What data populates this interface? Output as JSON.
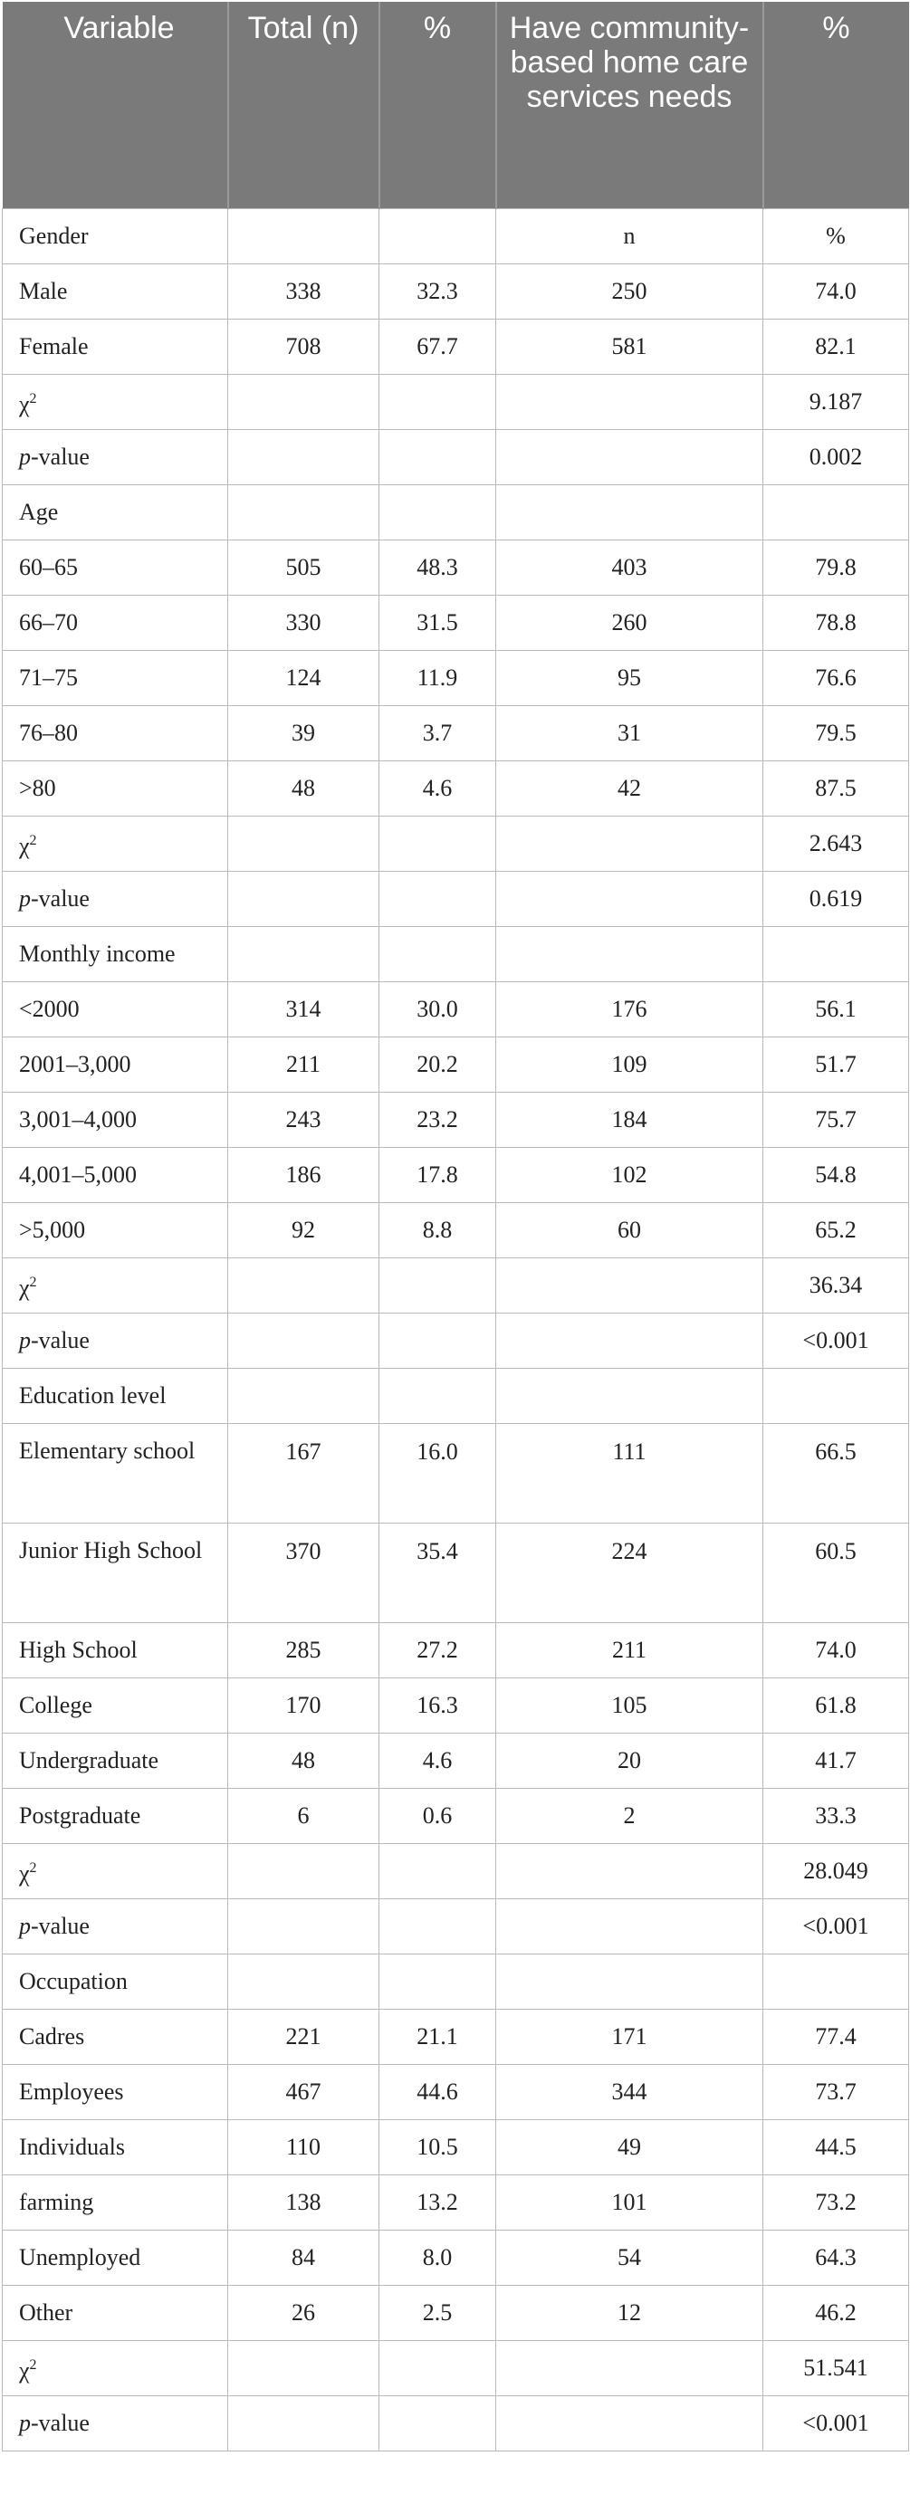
{
  "header": {
    "variable": "Variable",
    "total": "Total (n)",
    "pct": "%",
    "needs": "Have community-based home care services needs",
    "needs_pct": "%"
  },
  "rows": [
    {
      "type": "section",
      "label": "Gender",
      "c3": "n",
      "c4": "%"
    },
    {
      "type": "data",
      "label": "Male",
      "total": "338",
      "pct": "32.3",
      "n": "250",
      "npct": "74.0"
    },
    {
      "type": "data",
      "label": "Female",
      "total": "708",
      "pct": "67.7",
      "n": "581",
      "npct": "82.1"
    },
    {
      "type": "chi",
      "label": "χ",
      "sup": "2",
      "value": "9.187"
    },
    {
      "type": "p",
      "label_italic": "p",
      "label_rest": "-value",
      "value": "0.002"
    },
    {
      "type": "section",
      "label": "Age"
    },
    {
      "type": "data",
      "label": "60–65",
      "total": "505",
      "pct": "48.3",
      "n": "403",
      "npct": "79.8"
    },
    {
      "type": "data",
      "label": "66–70",
      "total": "330",
      "pct": "31.5",
      "n": "260",
      "npct": "78.8"
    },
    {
      "type": "data",
      "label": "71–75",
      "total": "124",
      "pct": "11.9",
      "n": "95",
      "npct": "76.6"
    },
    {
      "type": "data",
      "label": "76–80",
      "total": "39",
      "pct": "3.7",
      "n": "31",
      "npct": "79.5"
    },
    {
      "type": "data",
      "label": ">80",
      "total": "48",
      "pct": "4.6",
      "n": "42",
      "npct": "87.5"
    },
    {
      "type": "chi",
      "label": "χ",
      "sup": "2",
      "value": "2.643"
    },
    {
      "type": "p",
      "label_italic": "p",
      "label_rest": "-value",
      "value": "0.619"
    },
    {
      "type": "section",
      "label": "Monthly income"
    },
    {
      "type": "data",
      "label": "<2000",
      "total": "314",
      "pct": "30.0",
      "n": "176",
      "npct": "56.1"
    },
    {
      "type": "data",
      "label": "2001–3,000",
      "total": "211",
      "pct": "20.2",
      "n": "109",
      "npct": "51.7"
    },
    {
      "type": "data",
      "label": "3,001–4,000",
      "total": "243",
      "pct": "23.2",
      "n": "184",
      "npct": "75.7"
    },
    {
      "type": "data",
      "label": "4,001–5,000",
      "total": "186",
      "pct": "17.8",
      "n": "102",
      "npct": "54.8"
    },
    {
      "type": "data",
      "label": ">5,000",
      "total": "92",
      "pct": "8.8",
      "n": "60",
      "npct": "65.2"
    },
    {
      "type": "chi",
      "label": "χ",
      "sup": "2",
      "value": "36.34"
    },
    {
      "type": "p",
      "label_italic": "p",
      "label_rest": "-value",
      "value": "<0.001"
    },
    {
      "type": "section",
      "label": "Education level"
    },
    {
      "type": "data",
      "tall": true,
      "label": "Elementary school",
      "total": "167",
      "pct": "16.0",
      "n": "111",
      "npct": "66.5"
    },
    {
      "type": "data",
      "tall": true,
      "label": "Junior High School",
      "total": "370",
      "pct": "35.4",
      "n": "224",
      "npct": "60.5"
    },
    {
      "type": "data",
      "label": "High School",
      "total": "285",
      "pct": "27.2",
      "n": "211",
      "npct": "74.0"
    },
    {
      "type": "data",
      "label": "College",
      "total": "170",
      "pct": "16.3",
      "n": "105",
      "npct": "61.8"
    },
    {
      "type": "data",
      "label": "Undergraduate",
      "total": "48",
      "pct": "4.6",
      "n": "20",
      "npct": "41.7"
    },
    {
      "type": "data",
      "label": "Postgraduate",
      "total": "6",
      "pct": "0.6",
      "n": "2",
      "npct": "33.3"
    },
    {
      "type": "chi",
      "label": "χ",
      "sup": "2",
      "value": "28.049"
    },
    {
      "type": "p",
      "label_italic": "p",
      "label_rest": "-value",
      "value": "<0.001"
    },
    {
      "type": "section",
      "label": "Occupation"
    },
    {
      "type": "data",
      "label": "Cadres",
      "total": "221",
      "pct": "21.1",
      "n": "171",
      "npct": "77.4"
    },
    {
      "type": "data",
      "label": "Employees",
      "total": "467",
      "pct": "44.6",
      "n": "344",
      "npct": "73.7"
    },
    {
      "type": "data",
      "label": "Individuals",
      "total": "110",
      "pct": "10.5",
      "n": "49",
      "npct": "44.5"
    },
    {
      "type": "data",
      "label": "farming",
      "total": "138",
      "pct": "13.2",
      "n": "101",
      "npct": "73.2"
    },
    {
      "type": "data",
      "label": "Unemployed",
      "total": "84",
      "pct": "8.0",
      "n": "54",
      "npct": "64.3"
    },
    {
      "type": "data",
      "label": "Other",
      "total": "26",
      "pct": "2.5",
      "n": "12",
      "npct": "46.2"
    },
    {
      "type": "chi",
      "label": "χ",
      "sup": "2",
      "value": "51.541"
    },
    {
      "type": "p",
      "label_italic": "p",
      "label_rest": "-value",
      "value": "<0.001"
    }
  ]
}
